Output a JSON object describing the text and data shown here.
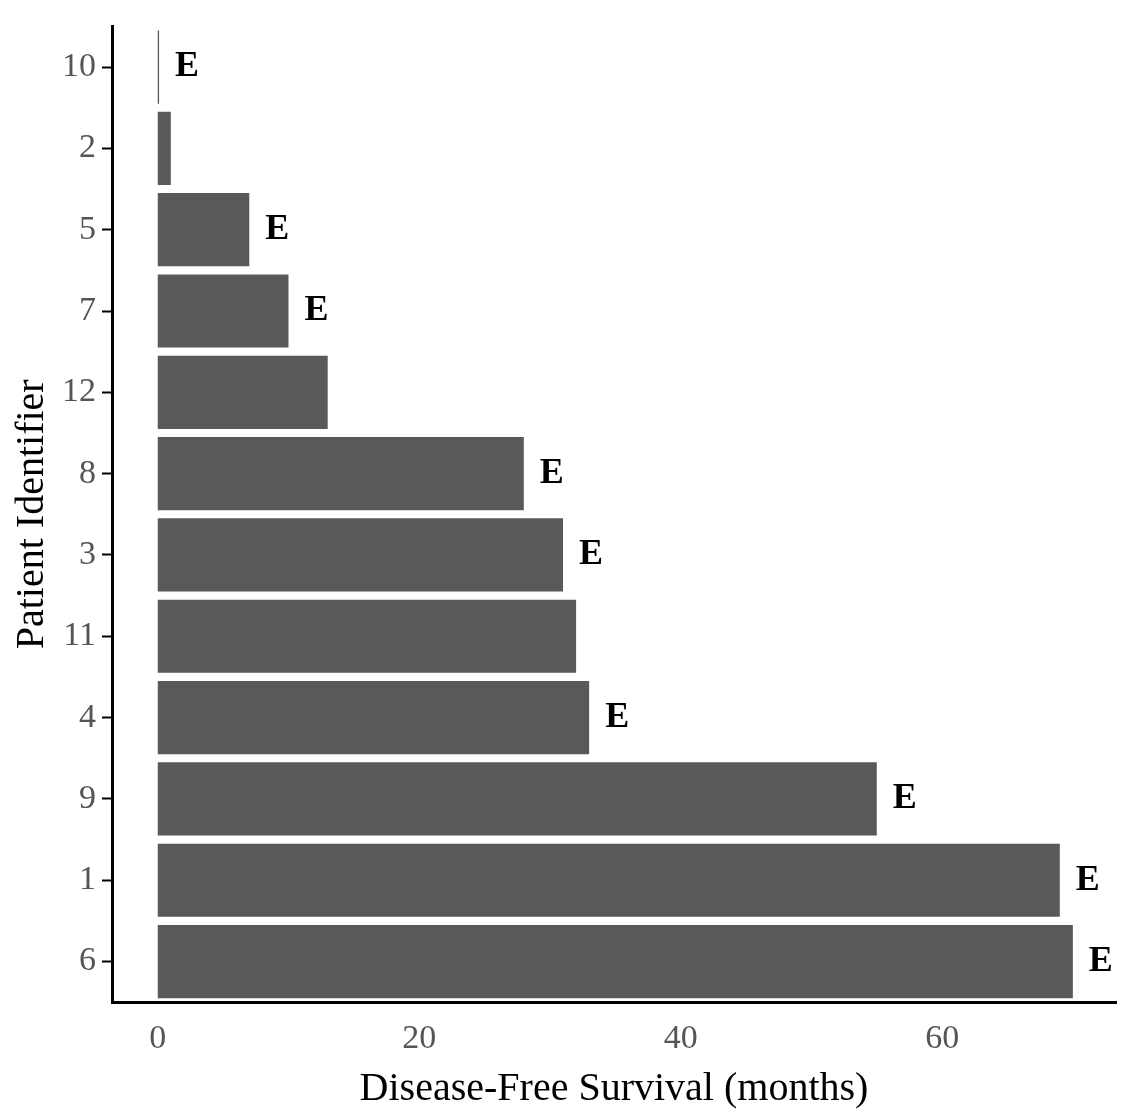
{
  "chart_data": {
    "type": "bar",
    "orientation": "horizontal",
    "xlabel": "Disease-Free Survival (months)",
    "ylabel": "Patient Identifier",
    "categories": [
      "10",
      "2",
      "5",
      "7",
      "12",
      "8",
      "3",
      "11",
      "4",
      "9",
      "1",
      "6"
    ],
    "values": [
      0.1,
      1,
      7,
      10,
      13,
      28,
      31,
      32,
      33,
      55,
      69,
      70
    ],
    "value_labels": [
      "E",
      null,
      "E",
      "E",
      null,
      "E",
      "E",
      null,
      "E",
      "E",
      "E",
      "E"
    ],
    "color": "#595959",
    "xlim": [
      -3.5,
      73.3
    ],
    "xticks": [
      0,
      20,
      40,
      60
    ]
  }
}
